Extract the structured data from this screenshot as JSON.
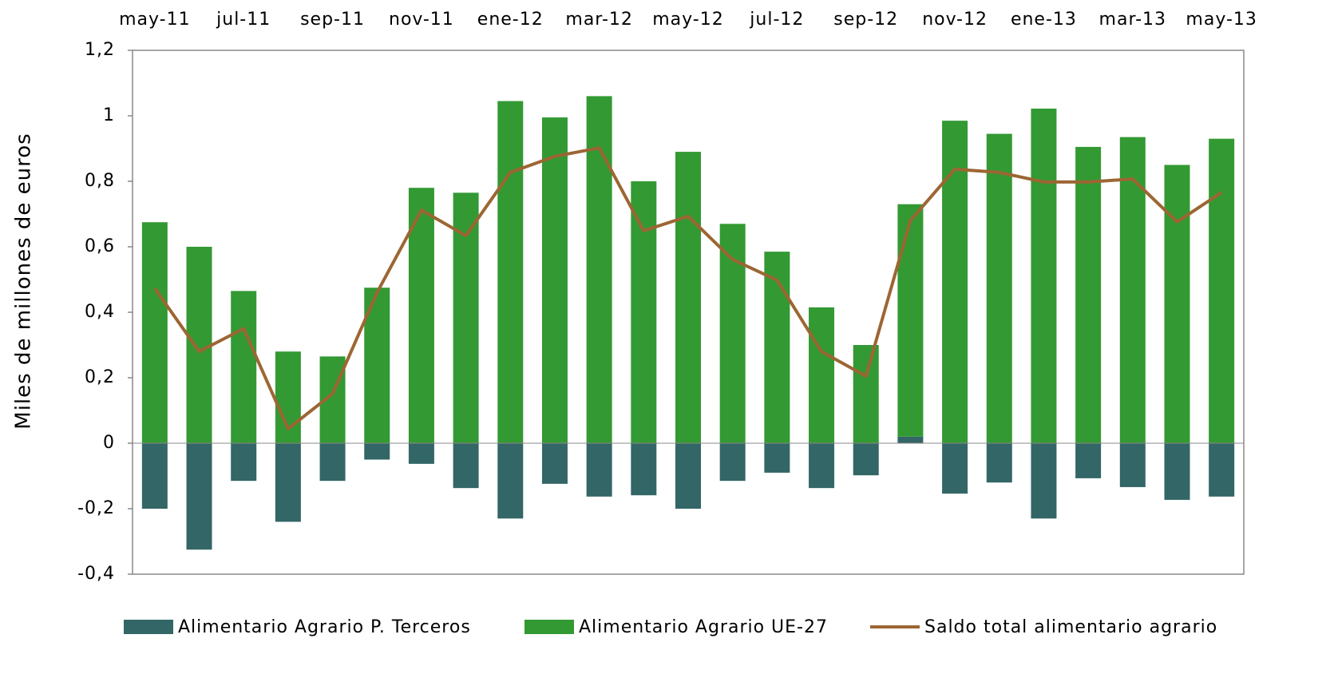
{
  "chart_data": {
    "type": "bar",
    "y_label": "Miles de millones de euros",
    "categories": [
      "may-11",
      null,
      "jul-11",
      null,
      "sep-11",
      null,
      "nov-11",
      null,
      "ene-12",
      null,
      "mar-12",
      null,
      "may-12",
      null,
      "jul-12",
      null,
      "sep-12",
      null,
      "nov-12",
      null,
      "ene-13",
      null,
      "mar-13",
      null,
      "may-13"
    ],
    "series": [
      {
        "name": "Alimentario Agrario P. Terceros",
        "color": "#336666",
        "kind": "bar",
        "values": [
          -0.2,
          -0.325,
          -0.115,
          -0.24,
          -0.115,
          -0.05,
          -0.063,
          -0.137,
          -0.23,
          -0.124,
          -0.163,
          -0.159,
          -0.2,
          -0.115,
          -0.09,
          -0.137,
          -0.098,
          0.02,
          -0.154,
          -0.12,
          -0.23,
          -0.107,
          -0.134,
          -0.173,
          -0.163
        ]
      },
      {
        "name": "Alimentario Agrario UE-27",
        "color": "#339933",
        "kind": "bar",
        "values": [
          0.675,
          0.6,
          0.465,
          0.28,
          0.265,
          0.475,
          0.78,
          0.765,
          1.045,
          0.995,
          1.06,
          0.8,
          0.89,
          0.67,
          0.585,
          0.415,
          0.3,
          0.71,
          0.985,
          0.945,
          1.022,
          0.905,
          0.935,
          0.85,
          0.93
        ]
      },
      {
        "name": "Saldo total alimentario agrario",
        "color": "#9c6633",
        "kind": "line",
        "values": [
          0.473,
          0.28,
          0.35,
          0.044,
          0.151,
          0.46,
          0.712,
          0.634,
          0.827,
          0.876,
          0.902,
          0.649,
          0.693,
          0.561,
          0.498,
          0.28,
          0.205,
          0.68,
          0.837,
          0.827,
          0.798,
          0.798,
          0.807,
          0.676,
          0.766
        ]
      }
    ],
    "ylim": [
      -0.4,
      1.2
    ],
    "yticks": [
      {
        "value": 1.2,
        "label": "1,2"
      },
      1,
      {
        "value": 0.8,
        "label": "0,8"
      },
      {
        "value": 0.6,
        "label": "0,6"
      },
      {
        "value": 0.4,
        "label": "0,4"
      },
      {
        "value": 0.2,
        "label": "0,2"
      },
      0,
      {
        "value": -0.2,
        "label": "-0,2"
      },
      {
        "value": -0.4,
        "label": "-0,4"
      }
    ],
    "legend": "bottom"
  }
}
